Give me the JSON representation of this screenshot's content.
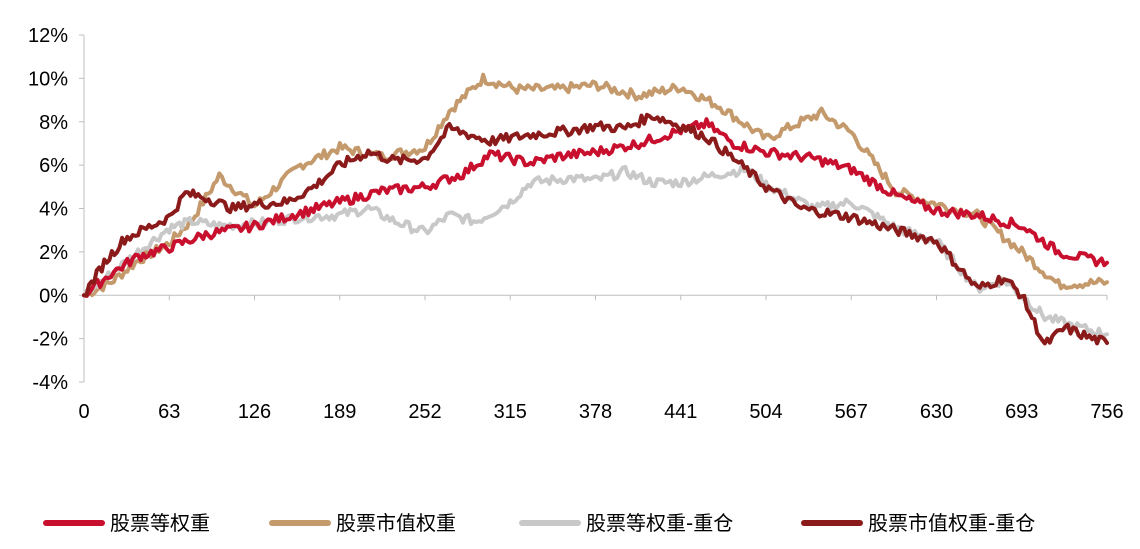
{
  "chart_data": {
    "type": "line",
    "title": "",
    "xlabel": "",
    "ylabel": "",
    "xlim": [
      0,
      756
    ],
    "ylim": [
      -4,
      12
    ],
    "y_unit": "%",
    "x_ticks": [
      0,
      63,
      126,
      189,
      252,
      315,
      378,
      441,
      504,
      567,
      630,
      693,
      756
    ],
    "y_ticks": [
      -4,
      -2,
      0,
      2,
      4,
      6,
      8,
      10,
      12
    ],
    "y_tick_labels": [
      "-4%",
      "-2%",
      "0%",
      "2%",
      "4%",
      "6%",
      "8%",
      "10%",
      "12%"
    ],
    "grid": false,
    "legend_position": "bottom",
    "series": [
      {
        "name": "股票等权重",
        "color": "#C8102E",
        "x": [
          0,
          20,
          40,
          63,
          90,
          126,
          160,
          189,
          220,
          252,
          280,
          300,
          330,
          350,
          378,
          410,
          441,
          460,
          480,
          504,
          540,
          567,
          600,
          630,
          660,
          693,
          720,
          740,
          756
        ],
        "y": [
          0,
          1.0,
          1.8,
          2.2,
          2.8,
          3.2,
          3.8,
          4.3,
          4.8,
          5.0,
          5.6,
          6.5,
          6.1,
          6.4,
          6.6,
          7.0,
          7.6,
          7.9,
          7.0,
          6.6,
          6.3,
          5.8,
          4.6,
          3.9,
          3.7,
          3.2,
          2.0,
          1.7,
          1.5
        ]
      },
      {
        "name": "股票市值权重",
        "color": "#C49A6C",
        "x": [
          0,
          20,
          40,
          63,
          80,
          100,
          126,
          160,
          189,
          220,
          252,
          270,
          295,
          320,
          350,
          378,
          410,
          441,
          470,
          504,
          530,
          545,
          567,
          600,
          630,
          660,
          693,
          720,
          756
        ],
        "y": [
          0,
          0.6,
          1.6,
          2.4,
          3.5,
          5.5,
          4.1,
          6.0,
          6.8,
          6.4,
          6.8,
          8.5,
          10.0,
          9.5,
          9.5,
          9.7,
          9.2,
          9.6,
          8.7,
          7.2,
          8.0,
          8.4,
          7.5,
          4.8,
          4.2,
          3.7,
          2.0,
          0.5,
          0.6
        ]
      },
      {
        "name": "股票等权重-重仓",
        "color": "#C8C8C8",
        "x": [
          0,
          20,
          40,
          63,
          80,
          100,
          126,
          160,
          189,
          210,
          230,
          252,
          270,
          290,
          315,
          330,
          360,
          378,
          400,
          420,
          441,
          470,
          490,
          504,
          540,
          567,
          600,
          630,
          660,
          680,
          693,
          710,
          730,
          756
        ],
        "y": [
          0,
          1.0,
          2.0,
          3.1,
          3.4,
          3.2,
          3.3,
          3.6,
          3.7,
          4.0,
          3.4,
          2.9,
          3.7,
          3.4,
          4.3,
          5.2,
          5.4,
          5.3,
          5.7,
          5.2,
          5.2,
          5.6,
          5.8,
          5.1,
          4.0,
          4.3,
          3.1,
          2.5,
          0.3,
          0.7,
          0.0,
          -1.0,
          -1.4,
          -1.8
        ]
      },
      {
        "name": "股票市值权重-重仓",
        "color": "#8B1A1A",
        "x": [
          0,
          15,
          30,
          50,
          63,
          75,
          90,
          110,
          126,
          150,
          170,
          189,
          210,
          230,
          252,
          270,
          300,
          330,
          360,
          378,
          400,
          420,
          441,
          460,
          480,
          504,
          530,
          567,
          600,
          630,
          660,
          680,
          693,
          710,
          725,
          745,
          756
        ],
        "y": [
          0,
          1.5,
          2.6,
          3.2,
          3.6,
          4.7,
          4.5,
          4.0,
          4.2,
          4.3,
          5.0,
          6.0,
          6.6,
          6.2,
          6.3,
          7.7,
          7.1,
          7.4,
          7.6,
          7.8,
          7.7,
          8.3,
          7.8,
          7.3,
          6.3,
          5.0,
          4.0,
          3.6,
          3.0,
          2.5,
          0.3,
          0.8,
          0.0,
          -2.3,
          -1.5,
          -2.0,
          -2.2
        ]
      }
    ]
  }
}
